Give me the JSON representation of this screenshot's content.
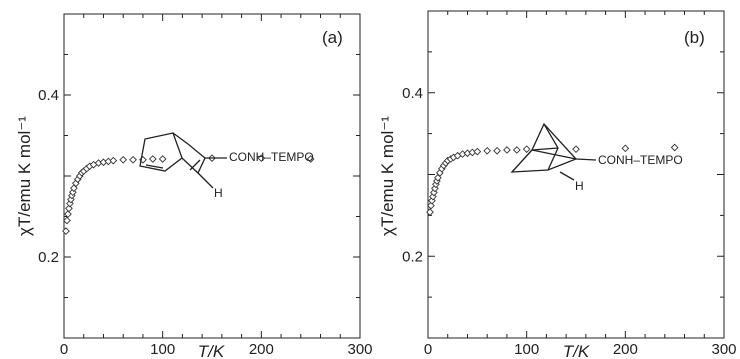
{
  "chart_data": [
    {
      "type": "scatter",
      "panel_label": "(a)",
      "xlabel": "T/K",
      "ylabel": "χT/emu K mol⁻¹",
      "xlim": [
        0,
        300
      ],
      "ylim": [
        0.1,
        0.5
      ],
      "x_ticks": [
        "0",
        "100",
        "200",
        "300"
      ],
      "y_ticks": [
        "0.2",
        "0.4"
      ],
      "marker": "diamond",
      "structure": {
        "substituent": "CONH–TEMPO",
        "h_label": "H"
      },
      "series": [
        {
          "points": [
            [
              2,
              0.232
            ],
            [
              3,
              0.245
            ],
            [
              4,
              0.253
            ],
            [
              5,
              0.26
            ],
            [
              6,
              0.266
            ],
            [
              7,
              0.271
            ],
            [
              8,
              0.276
            ],
            [
              9,
              0.28
            ],
            [
              10,
              0.285
            ],
            [
              12,
              0.291
            ],
            [
              14,
              0.296
            ],
            [
              16,
              0.3
            ],
            [
              18,
              0.304
            ],
            [
              20,
              0.306
            ],
            [
              23,
              0.309
            ],
            [
              26,
              0.312
            ],
            [
              30,
              0.314
            ],
            [
              35,
              0.316
            ],
            [
              40,
              0.317
            ],
            [
              45,
              0.318
            ],
            [
              50,
              0.319
            ],
            [
              60,
              0.32
            ],
            [
              70,
              0.32
            ],
            [
              80,
              0.32
            ],
            [
              90,
              0.321
            ],
            [
              100,
              0.321
            ],
            [
              150,
              0.322
            ],
            [
              200,
              0.322
            ],
            [
              250,
              0.321
            ]
          ]
        }
      ]
    },
    {
      "type": "scatter",
      "panel_label": "(b)",
      "xlabel": "T/K",
      "ylabel": "χT/emu K mol⁻¹",
      "xlim": [
        0,
        300
      ],
      "ylim": [
        0.1,
        0.5
      ],
      "x_ticks": [
        "0",
        "100",
        "200",
        "300"
      ],
      "y_ticks": [
        "0.2",
        "0.4"
      ],
      "marker": "diamond",
      "structure": {
        "substituent": "CONH–TEMPO",
        "h_label": "H"
      },
      "series": [
        {
          "points": [
            [
              2,
              0.254
            ],
            [
              3,
              0.262
            ],
            [
              4,
              0.268
            ],
            [
              5,
              0.273
            ],
            [
              6,
              0.278
            ],
            [
              7,
              0.283
            ],
            [
              8,
              0.288
            ],
            [
              9,
              0.292
            ],
            [
              10,
              0.296
            ],
            [
              12,
              0.302
            ],
            [
              14,
              0.307
            ],
            [
              16,
              0.311
            ],
            [
              18,
              0.314
            ],
            [
              20,
              0.317
            ],
            [
              23,
              0.319
            ],
            [
              26,
              0.321
            ],
            [
              30,
              0.323
            ],
            [
              35,
              0.325
            ],
            [
              40,
              0.326
            ],
            [
              45,
              0.327
            ],
            [
              50,
              0.328
            ],
            [
              60,
              0.329
            ],
            [
              70,
              0.329
            ],
            [
              80,
              0.33
            ],
            [
              90,
              0.33
            ],
            [
              100,
              0.331
            ],
            [
              150,
              0.331
            ],
            [
              200,
              0.332
            ],
            [
              250,
              0.333
            ]
          ]
        }
      ]
    }
  ]
}
